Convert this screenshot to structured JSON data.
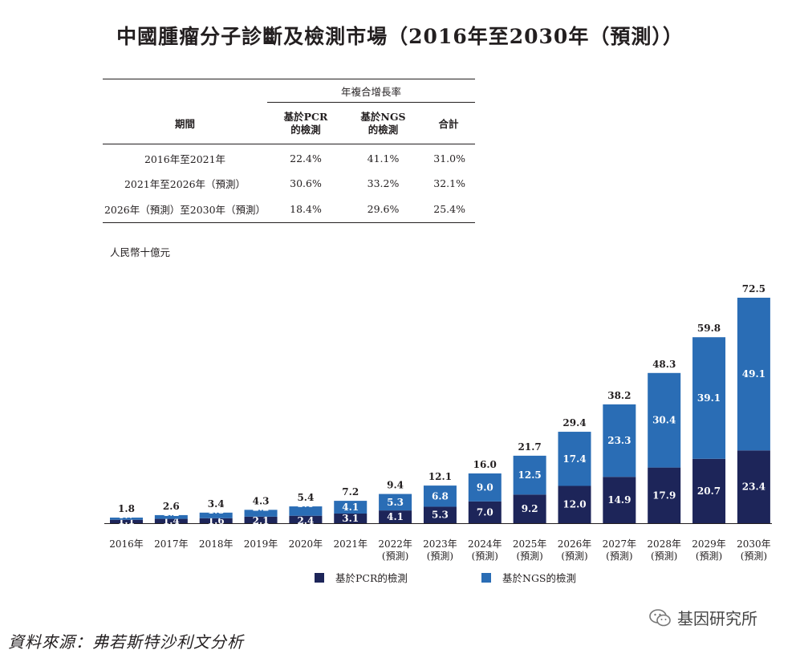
{
  "title": "中國腫瘤分子診斷及檢測市場（2016年至2030年（預測））",
  "cagr_table": {
    "group_header": "年複合增長率",
    "period_header": "期間",
    "col_pcr": [
      "基於PCR",
      "的檢測"
    ],
    "col_ngs": [
      "基於NGS",
      "的檢測"
    ],
    "col_total": "合計",
    "rows": [
      {
        "period": "2016年至2021年",
        "pcr": "22.4%",
        "ngs": "41.1%",
        "total": "31.0%"
      },
      {
        "period": "2021年至2026年（預測）",
        "pcr": "30.6%",
        "ngs": "33.2%",
        "total": "32.1%"
      },
      {
        "period": "2026年（預測）至2030年（預測）",
        "pcr": "18.4%",
        "ngs": "29.6%",
        "total": "25.4%"
      }
    ]
  },
  "unit_label": "人民幣十億元",
  "chart_data": {
    "type": "bar",
    "stacked": true,
    "categories": [
      "2016年",
      "2017年",
      "2018年",
      "2019年",
      "2020年",
      "2021年",
      "2022年",
      "2023年",
      "2024年",
      "2025年",
      "2026年",
      "2027年",
      "2028年",
      "2029年",
      "2030年"
    ],
    "category_sublabels": [
      "",
      "",
      "",
      "",
      "",
      "",
      "(預測)",
      "(預測)",
      "(預測)",
      "(預測)",
      "(預測)",
      "(預測)",
      "(預測)",
      "(預測)",
      "(預測)"
    ],
    "series": [
      {
        "name": "基於PCR的檢測",
        "color": "#1d2559",
        "values": [
          1.1,
          1.4,
          1.6,
          2.1,
          2.4,
          3.1,
          4.1,
          5.3,
          7.0,
          9.2,
          12.0,
          14.9,
          17.9,
          20.7,
          23.4
        ]
      },
      {
        "name": "基於NGS的檢測",
        "color": "#2a6db5",
        "values": [
          0.7,
          1.2,
          1.8,
          2.2,
          3.0,
          4.1,
          5.3,
          6.8,
          9.0,
          12.5,
          17.4,
          23.3,
          30.4,
          39.1,
          49.1
        ]
      }
    ],
    "totals": [
      1.8,
      2.6,
      3.4,
      4.3,
      5.4,
      7.2,
      9.4,
      12.1,
      16.0,
      21.7,
      29.4,
      38.2,
      48.3,
      59.8,
      72.5
    ],
    "ylim": [
      0,
      72.5
    ],
    "legend_position": "bottom"
  },
  "source": "資料來源：弗若斯特沙利文分析",
  "watermark": "基因研究所"
}
